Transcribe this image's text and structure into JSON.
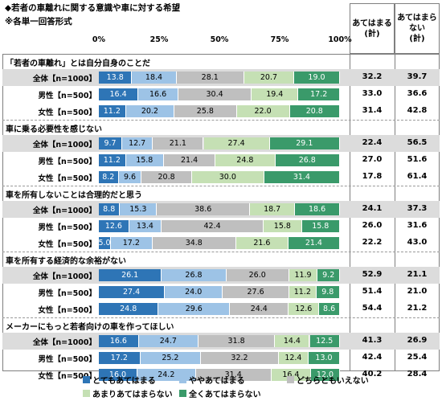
{
  "title": "◆若者の車離れに関する意識や車に対する希望",
  "subtitle": "※各単一回答形式",
  "column_headers": [
    "あてはまる\n(計)",
    "あてはまらない\n(計)"
  ],
  "colors": {
    "とてもあてはまる": "#2e75b6",
    "ややあてはまる": "#9dc3e6",
    "どちらともいえない": "#bfbfbf",
    "あまりあてはまらない": "#c5e0b4",
    "全くあてはまらない": "#3a9a6a"
  },
  "chart_data": {
    "type": "bar",
    "orientation": "horizontal",
    "stacked": true,
    "xlim": [
      0,
      100
    ],
    "x_ticks": [
      "0%",
      "25%",
      "50%",
      "75%",
      "100%"
    ],
    "legend_placement": "bottom",
    "series_names": [
      "とてもあてはまる",
      "ややあてはまる",
      "どちらともいえない",
      "あまりあてはまらない",
      "全くあてはまらない"
    ],
    "groups": [
      {
        "title": "「若者の車離れ」とは自分自身のことだ",
        "rows": [
          {
            "label": "全体【n=1000】",
            "values": [
              13.8,
              18.4,
              28.1,
              20.7,
              19.0
            ],
            "agree": "32.2",
            "disagree": "39.7"
          },
          {
            "label": "男性【n=500】",
            "values": [
              16.4,
              16.6,
              30.4,
              19.4,
              17.2
            ],
            "agree": "33.0",
            "disagree": "36.6"
          },
          {
            "label": "女性【n=500】",
            "values": [
              11.2,
              20.2,
              25.8,
              22.0,
              20.8
            ],
            "agree": "31.4",
            "disagree": "42.8"
          }
        ]
      },
      {
        "title": "車に乗る必要性を感じない",
        "rows": [
          {
            "label": "全体【n=1000】",
            "values": [
              9.7,
              12.7,
              21.1,
              27.4,
              29.1
            ],
            "agree": "22.4",
            "disagree": "56.5"
          },
          {
            "label": "男性【n=500】",
            "values": [
              11.2,
              15.8,
              21.4,
              24.8,
              26.8
            ],
            "agree": "27.0",
            "disagree": "51.6"
          },
          {
            "label": "女性【n=500】",
            "values": [
              8.2,
              9.6,
              20.8,
              30.0,
              31.4
            ],
            "agree": "17.8",
            "disagree": "61.4"
          }
        ]
      },
      {
        "title": "車を所有しないことは合理的だと思う",
        "rows": [
          {
            "label": "全体【n=1000】",
            "values": [
              8.8,
              15.3,
              38.6,
              18.7,
              18.6
            ],
            "agree": "24.1",
            "disagree": "37.3"
          },
          {
            "label": "男性【n=500】",
            "values": [
              12.6,
              13.4,
              42.4,
              15.8,
              15.8
            ],
            "agree": "26.0",
            "disagree": "31.6"
          },
          {
            "label": "女性【n=500】",
            "values": [
              5.0,
              17.2,
              34.8,
              21.6,
              21.4
            ],
            "agree": "22.2",
            "disagree": "43.0"
          }
        ]
      },
      {
        "title": "車を所有する経済的な余裕がない",
        "rows": [
          {
            "label": "全体【n=1000】",
            "values": [
              26.1,
              26.8,
              26.0,
              11.9,
              9.2
            ],
            "agree": "52.9",
            "disagree": "21.1"
          },
          {
            "label": "男性【n=500】",
            "values": [
              27.4,
              24.0,
              27.6,
              11.2,
              9.8
            ],
            "agree": "51.4",
            "disagree": "21.0"
          },
          {
            "label": "女性【n=500】",
            "values": [
              24.8,
              29.6,
              24.4,
              12.6,
              8.6
            ],
            "agree": "54.4",
            "disagree": "21.2"
          }
        ]
      },
      {
        "title": "メーカーにもっと若者向けの車を作ってほしい",
        "rows": [
          {
            "label": "全体【n=1000】",
            "values": [
              16.6,
              24.7,
              31.8,
              14.4,
              12.5
            ],
            "agree": "41.3",
            "disagree": "26.9"
          },
          {
            "label": "男性【n=500】",
            "values": [
              17.2,
              25.2,
              32.2,
              12.4,
              13.0
            ],
            "agree": "42.4",
            "disagree": "25.4"
          },
          {
            "label": "女性【n=500】",
            "values": [
              16.0,
              24.2,
              31.4,
              16.4,
              12.0
            ],
            "agree": "40.2",
            "disagree": "28.4"
          }
        ]
      }
    ]
  }
}
